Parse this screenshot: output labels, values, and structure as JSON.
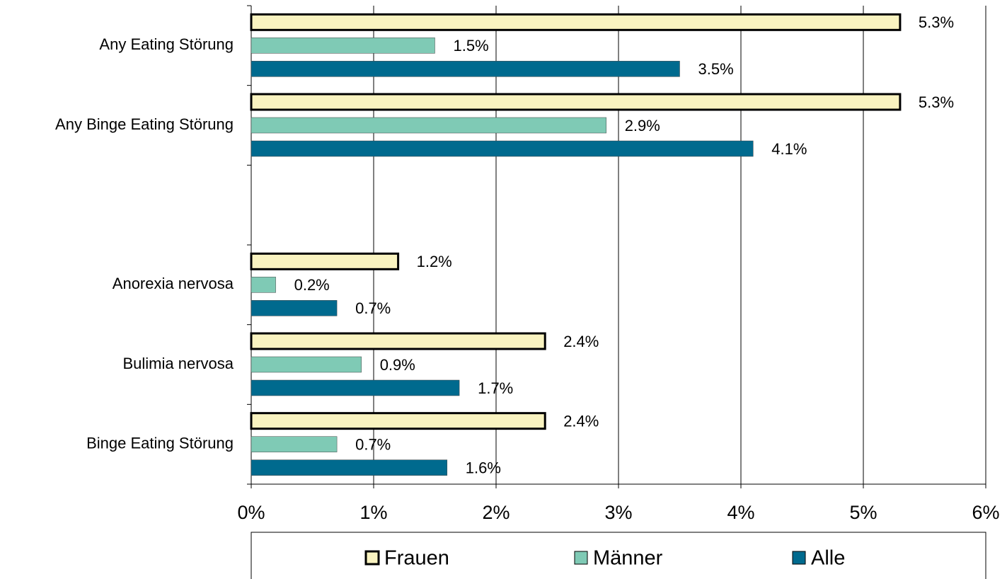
{
  "chart_data": {
    "type": "hbar",
    "categories": [
      "Any Eating Störung",
      "Any Binge Eating Störung",
      null,
      "Anorexia nervosa",
      "Bulimia nervosa",
      "Binge Eating Störung"
    ],
    "series": [
      {
        "name": "Frauen",
        "color": "#f9f3c0",
        "values": [
          5.3,
          5.3,
          null,
          1.2,
          2.4,
          2.4
        ],
        "value_labels": [
          "5.3%",
          "5.3%",
          null,
          "1.2%",
          "2.4%",
          "2.4%"
        ]
      },
      {
        "name": "Männer",
        "color": "#7fcab5",
        "values": [
          1.5,
          2.9,
          null,
          0.2,
          0.9,
          0.7
        ],
        "value_labels": [
          "1.5%",
          "2.9%",
          null,
          "0.2%",
          "0.9%",
          "0.7%"
        ]
      },
      {
        "name": "Alle",
        "color": "#006a8e",
        "values": [
          3.5,
          4.1,
          null,
          0.7,
          1.7,
          1.6
        ],
        "value_labels": [
          "3.5%",
          "4.1%",
          null,
          "0.7%",
          "1.7%",
          "1.6%"
        ]
      }
    ],
    "xlim": [
      0,
      6
    ],
    "xticks": [
      {
        "value": 0,
        "label": "0%"
      },
      {
        "value": 1,
        "label": "1%"
      },
      {
        "value": 2,
        "label": "2%"
      },
      {
        "value": 3,
        "label": "3%"
      },
      {
        "value": 4,
        "label": "4%"
      },
      {
        "value": 5,
        "label": "5%"
      },
      {
        "value": 6,
        "label": "6%"
      }
    ],
    "grid": true,
    "legend": "bottom"
  }
}
